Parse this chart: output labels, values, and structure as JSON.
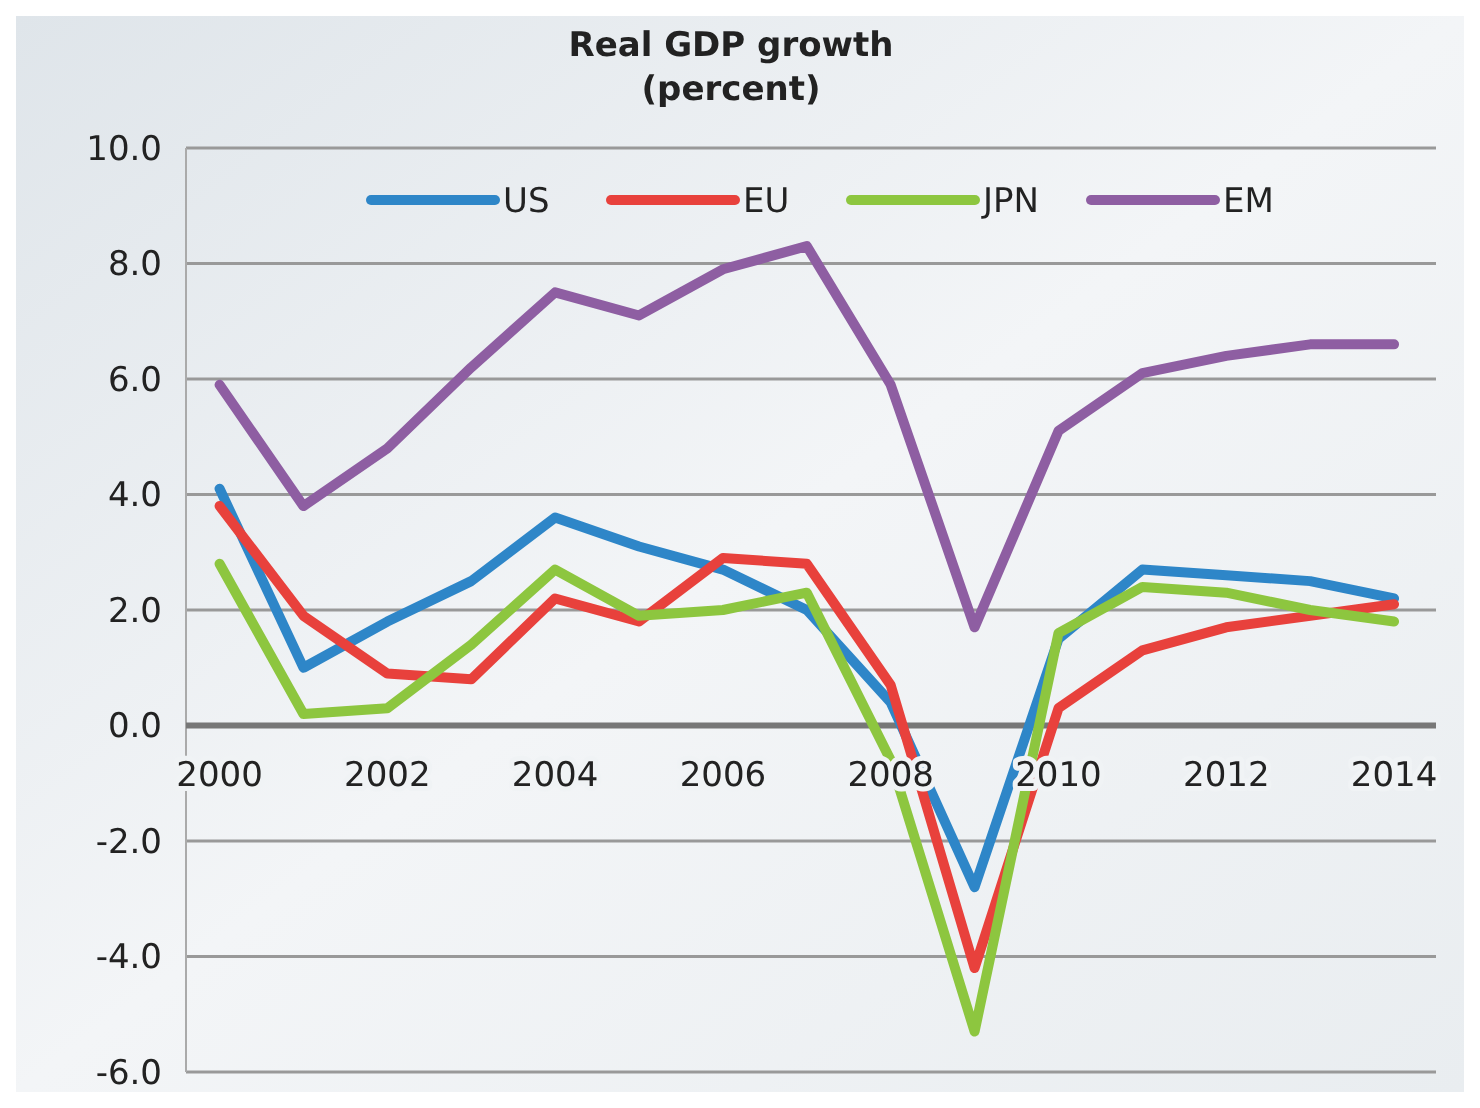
{
  "chart_data": {
    "type": "line",
    "title": "Real GDP growth",
    "subtitle": "(percent)",
    "x": [
      2000,
      2001,
      2002,
      2003,
      2004,
      2005,
      2006,
      2007,
      2008,
      2009,
      2010,
      2011,
      2012,
      2013,
      2014
    ],
    "series": [
      {
        "name": "US",
        "color": "#2e86c8",
        "values": [
          4.1,
          1.0,
          1.8,
          2.5,
          3.6,
          3.1,
          2.7,
          2.0,
          0.4,
          -2.8,
          1.5,
          2.7,
          2.6,
          2.5,
          2.2
        ]
      },
      {
        "name": "EU",
        "color": "#e8413c",
        "values": [
          3.8,
          1.9,
          0.9,
          0.8,
          2.2,
          1.8,
          2.9,
          2.8,
          0.7,
          -4.2,
          0.3,
          1.3,
          1.7,
          1.9,
          2.1
        ]
      },
      {
        "name": "JPN",
        "color": "#8dc63f",
        "values": [
          2.8,
          0.2,
          0.3,
          1.4,
          2.7,
          1.9,
          2.0,
          2.3,
          -0.6,
          -5.3,
          1.6,
          2.4,
          2.3,
          2.0,
          1.8
        ]
      },
      {
        "name": "EM",
        "color": "#8e5ea2",
        "values": [
          5.9,
          3.8,
          4.8,
          6.2,
          7.5,
          7.1,
          7.9,
          8.3,
          5.9,
          1.7,
          5.1,
          6.1,
          6.4,
          6.6,
          6.6
        ]
      }
    ],
    "xlim": [
      1999.6,
      2014.5
    ],
    "xticks": [
      2000,
      2002,
      2004,
      2006,
      2008,
      2010,
      2012,
      2014
    ],
    "ylim": [
      -6,
      10
    ],
    "yticks": [
      {
        "value": -6,
        "label": "-6.0"
      },
      {
        "value": -4,
        "label": "-4.0"
      },
      {
        "value": -2,
        "label": "-2.0"
      },
      {
        "value": 0,
        "label": "0.0"
      },
      {
        "value": 2,
        "label": "2.0"
      },
      {
        "value": 4,
        "label": "4.0"
      },
      {
        "value": 6,
        "label": "6.0"
      },
      {
        "value": 8,
        "label": "8.0"
      },
      {
        "value": 10,
        "label": "10.0"
      }
    ],
    "grid": "y",
    "legend": "top",
    "marker": "none",
    "line_style": "solid"
  }
}
